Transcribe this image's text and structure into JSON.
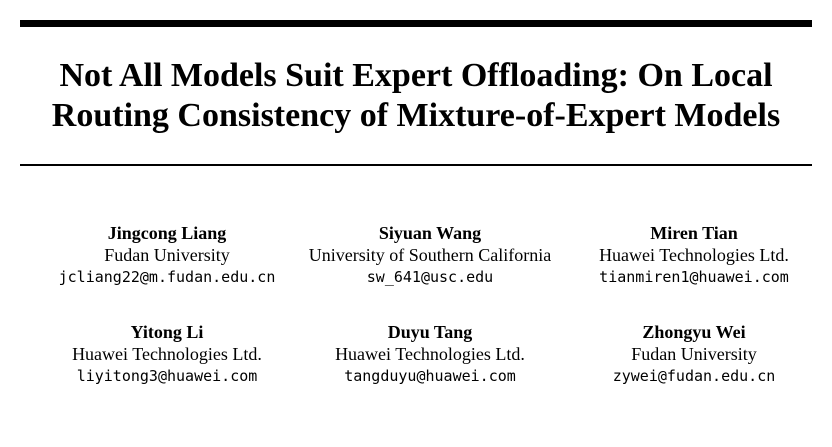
{
  "title_lines": [
    "Not All Models Suit Expert Offloading: On Local",
    "Routing Consistency of Mixture-of-Expert Models"
  ],
  "authors": [
    {
      "name": "Jingcong Liang",
      "affiliation": "Fudan University",
      "email": "jcliang22@m.fudan.edu.cn"
    },
    {
      "name": "Siyuan Wang",
      "affiliation": "University of Southern California",
      "email": "sw_641@usc.edu"
    },
    {
      "name": "Miren Tian",
      "affiliation": "Huawei Technologies Ltd.",
      "email": "tianmiren1@huawei.com"
    },
    {
      "name": "Yitong Li",
      "affiliation": "Huawei Technologies Ltd.",
      "email": "liyitong3@huawei.com"
    },
    {
      "name": "Duyu Tang",
      "affiliation": "Huawei Technologies Ltd.",
      "email": "tangduyu@huawei.com"
    },
    {
      "name": "Zhongyu Wei",
      "affiliation": "Fudan University",
      "email": "zywei@fudan.edu.cn"
    }
  ]
}
